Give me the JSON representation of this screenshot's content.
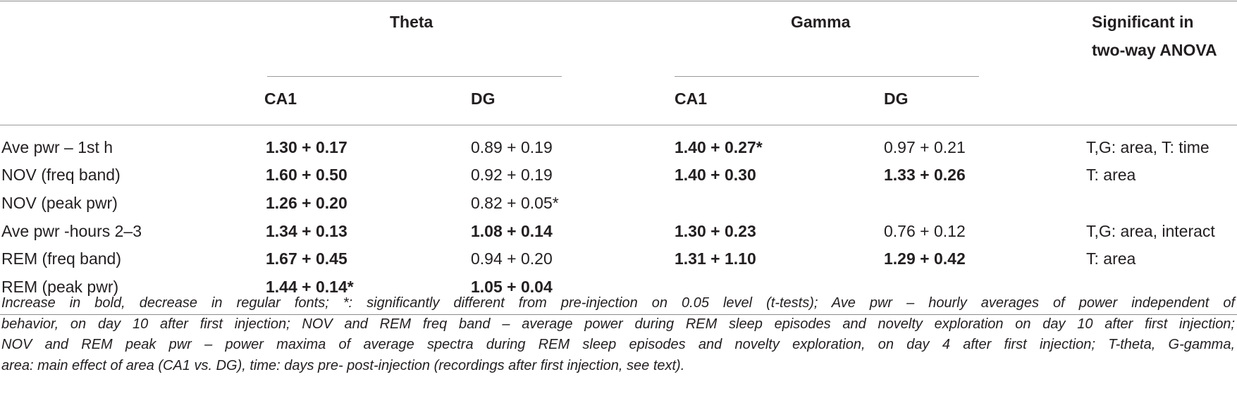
{
  "header": {
    "theta": "Theta",
    "gamma": "Gamma",
    "anova_line1": "Significant in",
    "anova_line2": "two-way ANOVA",
    "theta_ca1": "CA1",
    "theta_dg": "DG",
    "gamma_ca1": "CA1",
    "gamma_dg": "DG"
  },
  "rows": [
    {
      "label": "Ave pwr – 1st h",
      "theta_ca1": "1.30 + 0.17",
      "theta_dg": "0.89 + 0.19",
      "gamma_ca1": "1.40 + 0.27*",
      "gamma_dg": "0.97 + 0.21",
      "anova": "T,G: area, T: time"
    },
    {
      "label": "NOV (freq band)",
      "theta_ca1": "1.60 + 0.50",
      "theta_dg": "0.92 + 0.19",
      "gamma_ca1": "1.40 + 0.30",
      "gamma_dg": "1.33 + 0.26",
      "anova": "T: area"
    },
    {
      "label": "NOV (peak pwr)",
      "theta_ca1": "1.26 + 0.20",
      "theta_dg": "0.82 + 0.05*",
      "gamma_ca1": "",
      "gamma_dg": "",
      "anova": ""
    },
    {
      "label": "Ave pwr -hours 2–3",
      "theta_ca1": "1.34 + 0.13",
      "theta_dg": "1.08 + 0.14",
      "gamma_ca1": "1.30 + 0.23",
      "gamma_dg": "0.76 + 0.12",
      "anova": "T,G: area, interact"
    },
    {
      "label": "REM (freq band)",
      "theta_ca1": "1.67 + 0.45",
      "theta_dg": "0.94 + 0.20",
      "gamma_ca1": "1.31 + 1.10",
      "gamma_dg": "1.29 + 0.42",
      "anova": "T: area"
    },
    {
      "label": "REM (peak pwr)",
      "theta_ca1": "1.44 + 0.14*",
      "theta_dg": "1.05 + 0.04",
      "gamma_ca1": "",
      "gamma_dg": "",
      "anova": ""
    }
  ],
  "footnote": {
    "line1": "Increase in bold, decrease in regular fonts; *: significantly different from pre-injection on 0.05 level (t-tests); Ave pwr – hourly averages of power independent of",
    "line2": "behavior, on day 10 after first injection; NOV and REM freq band – average power during REM sleep episodes and novelty exploration on day 10 after first injection;",
    "line3": "NOV and REM peak pwr – power maxima of average spectra during REM sleep episodes and novelty exploration, on day 4 after first injection; T-theta, G-gamma,",
    "line4": "area: main effect of area (CA1 vs. DG), time: days pre- post-injection (recordings after first injection, see text)."
  }
}
